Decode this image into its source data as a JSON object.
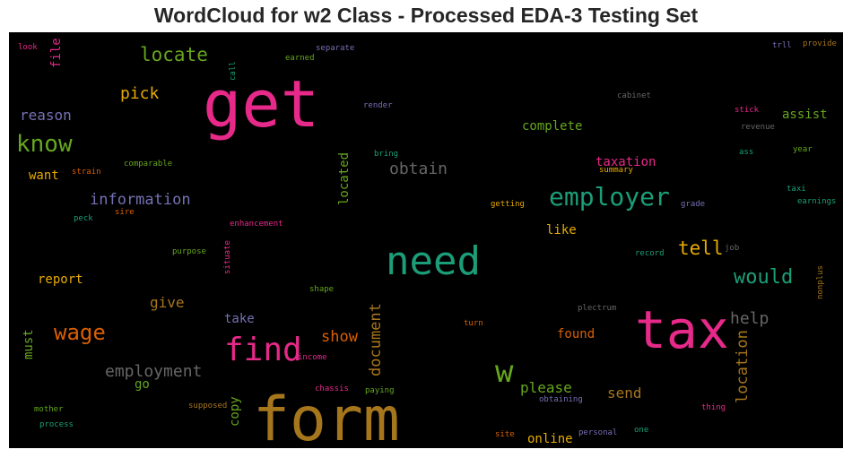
{
  "chart_data": {
    "type": "wordcloud",
    "title": "WordCloud for w2 Class - Processed EDA-3 Testing Set",
    "background": "#000000",
    "palette": "Dark2",
    "words": [
      {
        "text": "get",
        "weight": 100,
        "color": "#e7298a"
      },
      {
        "text": "form",
        "weight": 96,
        "color": "#a6761d"
      },
      {
        "text": "tax",
        "weight": 86,
        "color": "#e7298a"
      },
      {
        "text": "need",
        "weight": 69,
        "color": "#1b9e77"
      },
      {
        "text": "find",
        "weight": 54,
        "color": "#e7298a"
      },
      {
        "text": "w",
        "weight": 52,
        "color": "#66a61e"
      },
      {
        "text": "employer",
        "weight": 46,
        "color": "#1b9e77"
      },
      {
        "text": "know",
        "weight": 42,
        "color": "#66a61e"
      },
      {
        "text": "wage",
        "weight": 40,
        "color": "#d95f02"
      },
      {
        "text": "would",
        "weight": 37,
        "color": "#1b9e77"
      },
      {
        "text": "locate",
        "weight": 36,
        "color": "#66a61e"
      },
      {
        "text": "tell",
        "weight": 35,
        "color": "#e6ab02"
      },
      {
        "text": "obtain",
        "weight": 31,
        "color": "#666666"
      },
      {
        "text": "help",
        "weight": 31,
        "color": "#666666"
      },
      {
        "text": "employment",
        "weight": 31,
        "color": "#666666"
      },
      {
        "text": "pick",
        "weight": 30,
        "color": "#e6ab02"
      },
      {
        "text": "information",
        "weight": 30,
        "color": "#7570b3"
      },
      {
        "text": "show",
        "weight": 30,
        "color": "#d95f02"
      },
      {
        "text": "document",
        "weight": 30,
        "color": "#a6761d"
      },
      {
        "text": "location",
        "weight": 30,
        "color": "#a6761d"
      },
      {
        "text": "reason",
        "weight": 28,
        "color": "#7570b3"
      },
      {
        "text": "give",
        "weight": 28,
        "color": "#a6761d"
      },
      {
        "text": "please",
        "weight": 27,
        "color": "#66a61e"
      },
      {
        "text": "send",
        "weight": 27,
        "color": "#a6761d"
      },
      {
        "text": "complete",
        "weight": 25,
        "color": "#66a61e"
      },
      {
        "text": "taxation",
        "weight": 25,
        "color": "#e7298a"
      },
      {
        "text": "assist",
        "weight": 25,
        "color": "#66a61e"
      },
      {
        "text": "like",
        "weight": 25,
        "color": "#e6ab02"
      },
      {
        "text": "located",
        "weight": 25,
        "color": "#66a61e"
      },
      {
        "text": "found",
        "weight": 25,
        "color": "#d95f02"
      },
      {
        "text": "online",
        "weight": 25,
        "color": "#e6ab02"
      },
      {
        "text": "file",
        "weight": 23,
        "color": "#e7298a"
      },
      {
        "text": "want",
        "weight": 23,
        "color": "#e6ab02"
      },
      {
        "text": "report",
        "weight": 23,
        "color": "#e6ab02"
      },
      {
        "text": "take",
        "weight": 23,
        "color": "#7570b3"
      },
      {
        "text": "copy",
        "weight": 23,
        "color": "#66a61e"
      },
      {
        "text": "must",
        "weight": 21,
        "color": "#66a61e"
      },
      {
        "text": "go",
        "weight": 21,
        "color": "#66a61e"
      },
      {
        "text": "look",
        "weight": 12,
        "color": "#e7298a"
      },
      {
        "text": "separate",
        "weight": 12,
        "color": "#7570b3"
      },
      {
        "text": "earned",
        "weight": 12,
        "color": "#66a61e"
      },
      {
        "text": "call",
        "weight": 12,
        "color": "#1b9e77"
      },
      {
        "text": "trll",
        "weight": 12,
        "color": "#7570b3"
      },
      {
        "text": "provide",
        "weight": 12,
        "color": "#a6761d"
      },
      {
        "text": "cabinet",
        "weight": 12,
        "color": "#666666"
      },
      {
        "text": "render",
        "weight": 12,
        "color": "#7570b3"
      },
      {
        "text": "stick",
        "weight": 12,
        "color": "#e7298a"
      },
      {
        "text": "revenue",
        "weight": 12,
        "color": "#666666"
      },
      {
        "text": "bring",
        "weight": 12,
        "color": "#1b9e77"
      },
      {
        "text": "ass",
        "weight": 12,
        "color": "#1b9e77"
      },
      {
        "text": "year",
        "weight": 12,
        "color": "#66a61e"
      },
      {
        "text": "strain",
        "weight": 12,
        "color": "#d95f02"
      },
      {
        "text": "comparable",
        "weight": 12,
        "color": "#66a61e"
      },
      {
        "text": "summary",
        "weight": 12,
        "color": "#e6ab02"
      },
      {
        "text": "taxi",
        "weight": 12,
        "color": "#1b9e77"
      },
      {
        "text": "earnings",
        "weight": 12,
        "color": "#1b9e77"
      },
      {
        "text": "getting",
        "weight": 12,
        "color": "#e6ab02"
      },
      {
        "text": "grade",
        "weight": 12,
        "color": "#7570b3"
      },
      {
        "text": "sire",
        "weight": 12,
        "color": "#d95f02"
      },
      {
        "text": "peck",
        "weight": 12,
        "color": "#1b9e77"
      },
      {
        "text": "enhancement",
        "weight": 12,
        "color": "#e7298a"
      },
      {
        "text": "purpose",
        "weight": 12,
        "color": "#66a61e"
      },
      {
        "text": "record",
        "weight": 12,
        "color": "#1b9e77"
      },
      {
        "text": "job",
        "weight": 12,
        "color": "#666666"
      },
      {
        "text": "situate",
        "weight": 12,
        "color": "#e7298a"
      },
      {
        "text": "shape",
        "weight": 12,
        "color": "#66a61e"
      },
      {
        "text": "nonplus",
        "weight": 12,
        "color": "#a6761d"
      },
      {
        "text": "plectrum",
        "weight": 12,
        "color": "#666666"
      },
      {
        "text": "turn",
        "weight": 12,
        "color": "#d95f02"
      },
      {
        "text": "income",
        "weight": 12,
        "color": "#e7298a"
      },
      {
        "text": "chassis",
        "weight": 12,
        "color": "#e7298a"
      },
      {
        "text": "paying",
        "weight": 12,
        "color": "#66a61e"
      },
      {
        "text": "obtaining",
        "weight": 12,
        "color": "#7570b3"
      },
      {
        "text": "supposed",
        "weight": 12,
        "color": "#a6761d"
      },
      {
        "text": "thing",
        "weight": 12,
        "color": "#e7298a"
      },
      {
        "text": "mother",
        "weight": 12,
        "color": "#66a61e"
      },
      {
        "text": "process",
        "weight": 12,
        "color": "#1b9e77"
      },
      {
        "text": "site",
        "weight": 12,
        "color": "#d95f02"
      },
      {
        "text": "personal",
        "weight": 12,
        "color": "#7570b3"
      },
      {
        "text": "one",
        "weight": 12,
        "color": "#1b9e77"
      }
    ]
  }
}
